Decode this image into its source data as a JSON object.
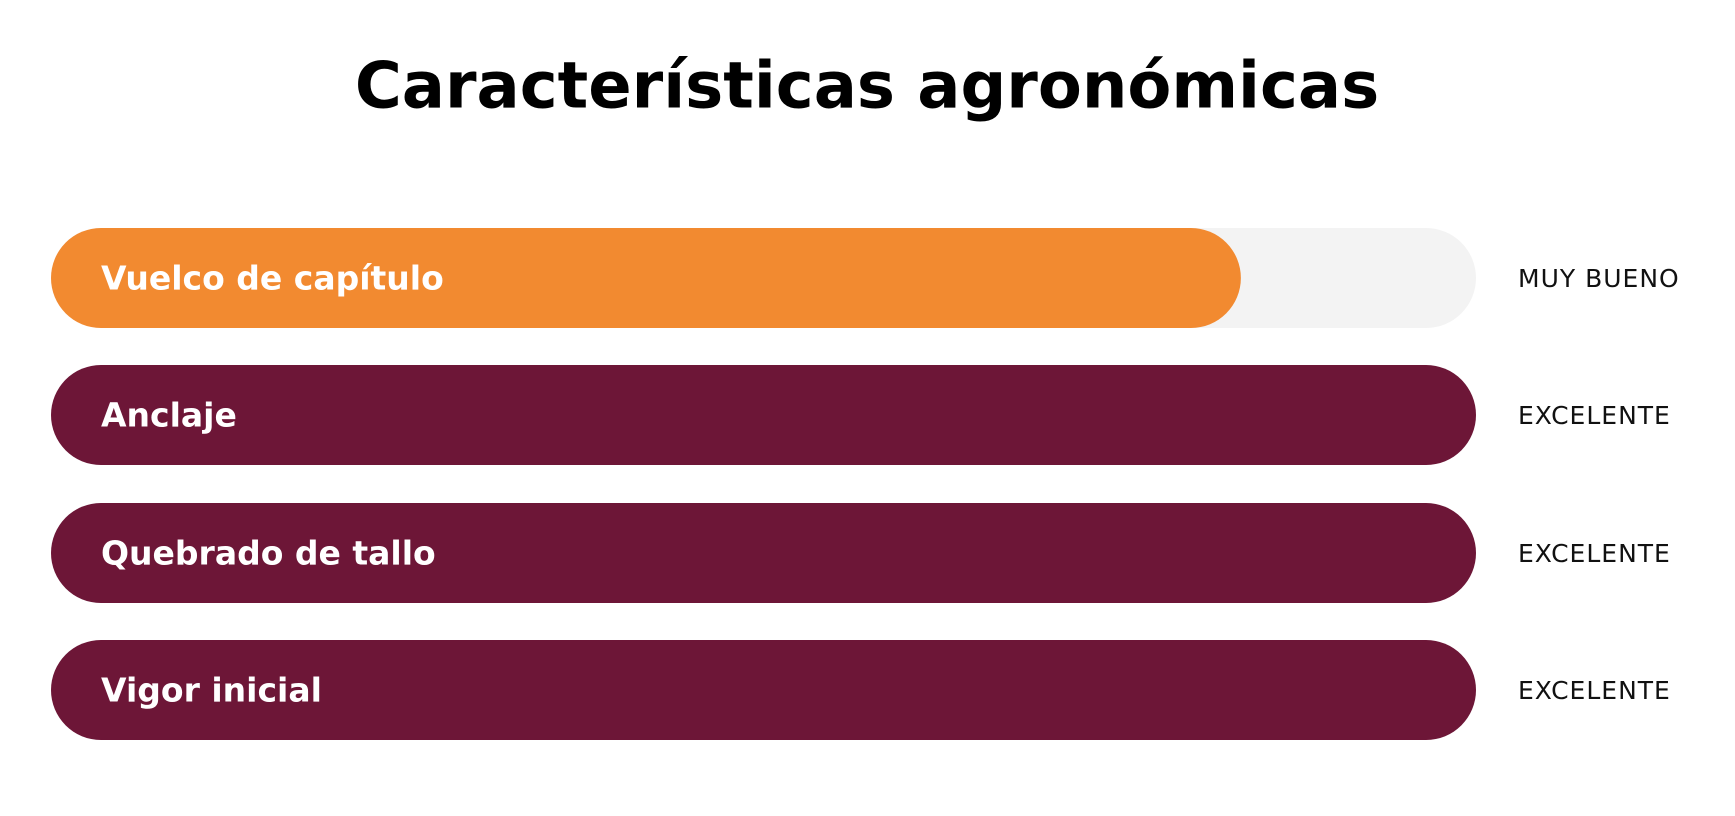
{
  "title": "Características agronómicas",
  "rows": [
    {
      "label": "Vuelco de capítulo",
      "rating": "MUY BUENO",
      "level": 0.835,
      "color": "#f28a30"
    },
    {
      "label": "Anclaje",
      "rating": "EXCELENTE",
      "level": 1,
      "color": "#6d1637"
    },
    {
      "label": "Quebrado de tallo",
      "rating": "EXCELENTE",
      "level": 1,
      "color": "#6d1637"
    },
    {
      "label": "Vigor inicial",
      "rating": "EXCELENTE",
      "level": 1,
      "color": "#6d1637"
    }
  ]
}
